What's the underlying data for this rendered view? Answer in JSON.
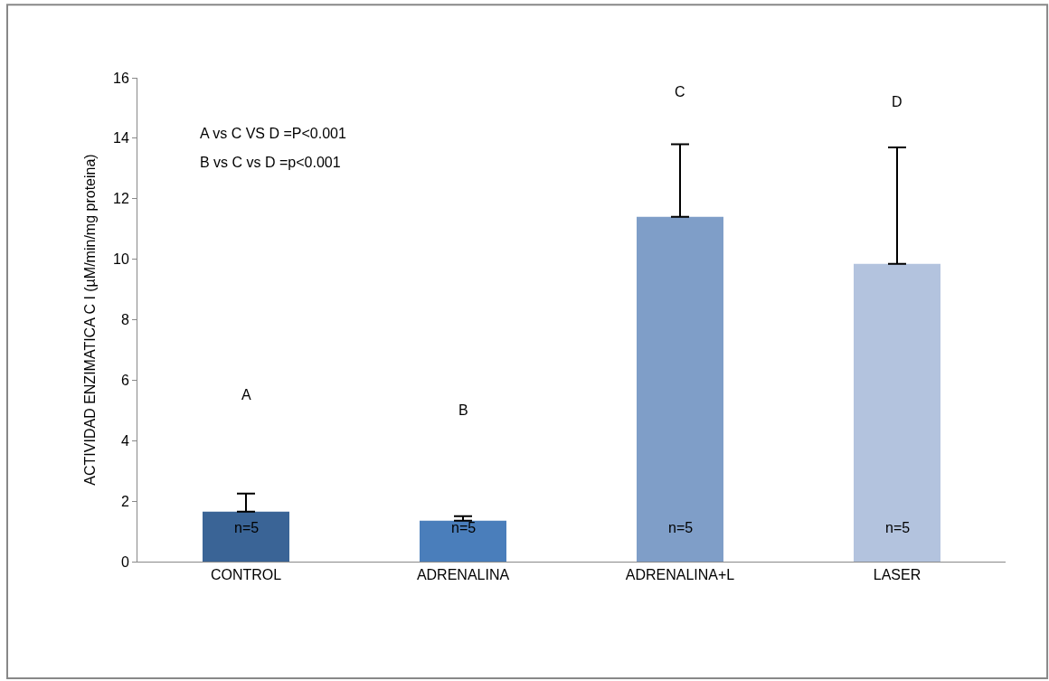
{
  "chart_data": {
    "type": "bar",
    "ylabel": "ACTIVIDAD ENZIMATICA C I (µM/min/mg proteina)",
    "categories": [
      "CONTROL",
      "ADRENALINA",
      "ADRENALINA+L",
      "LASER"
    ],
    "values": [
      1.65,
      1.35,
      11.4,
      9.85
    ],
    "colors": [
      "#3a6496",
      "#4a7ebb",
      "#7f9ec8",
      "#b3c3de"
    ],
    "errors": [
      [
        1.65,
        2.25
      ],
      [
        1.35,
        1.5
      ],
      [
        11.4,
        13.8
      ],
      [
        9.85,
        13.7
      ]
    ],
    "ylim": [
      0,
      16
    ],
    "yticks": [
      0,
      2,
      4,
      6,
      8,
      10,
      12,
      14,
      16
    ],
    "annotations": [
      "A",
      "B",
      "C",
      "D",
      "n=5",
      "n=5",
      "n=5",
      "n=5",
      "A vs C VS D =P<0.001",
      "B vs C vs D =p<0.001"
    ]
  }
}
